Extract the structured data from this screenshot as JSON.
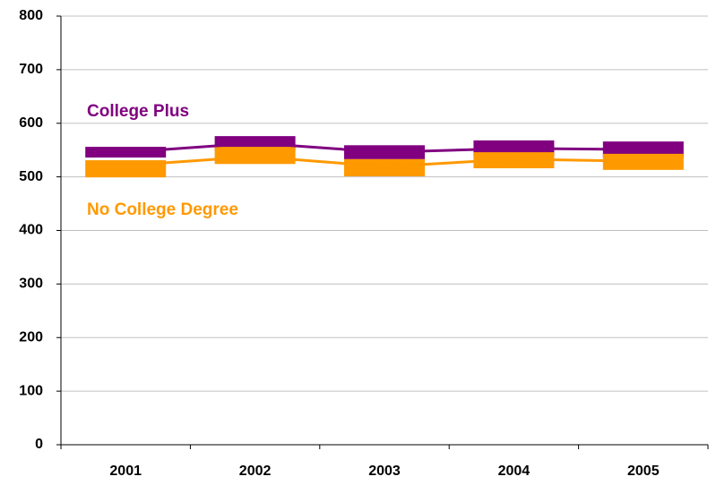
{
  "chart_data": {
    "type": "line",
    "categories": [
      "2001",
      "2002",
      "2003",
      "2004",
      "2005"
    ],
    "series": [
      {
        "name": "College Plus",
        "color": "#800080",
        "values": [
          546,
          563,
          546,
          553,
          551
        ],
        "low": [
          536,
          549,
          533,
          538,
          536
        ],
        "high": [
          556,
          576,
          559,
          568,
          566
        ]
      },
      {
        "name": "No College Degree",
        "color": "#ff9900",
        "values": [
          521,
          538,
          519,
          533,
          529
        ],
        "low": [
          499,
          524,
          501,
          516,
          513
        ],
        "high": [
          531,
          556,
          533,
          546,
          543
        ]
      }
    ],
    "ylim": [
      0,
      800
    ],
    "yticks": [
      0,
      100,
      200,
      300,
      400,
      500,
      600,
      700,
      800
    ],
    "grid": true
  }
}
